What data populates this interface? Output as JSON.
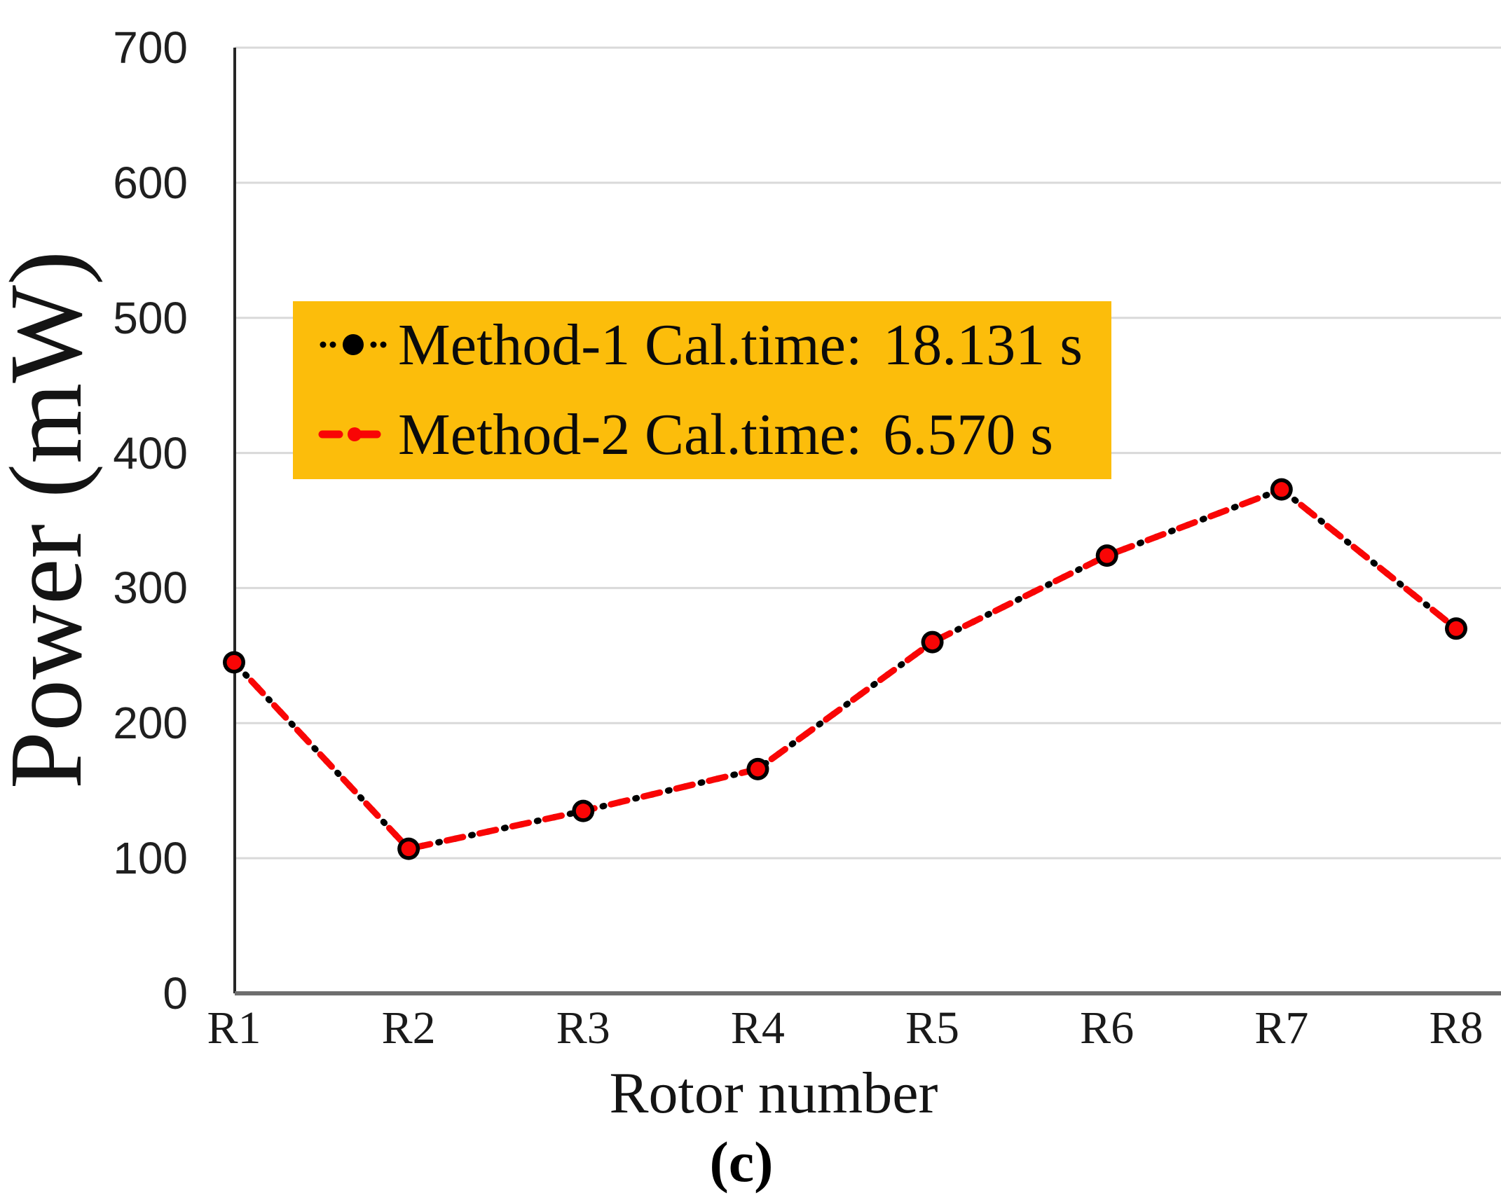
{
  "figure": {
    "caption": "(c)"
  },
  "colors": {
    "method1": "#000000",
    "method2": "#F90505",
    "legend_bg": "#FCBD0B",
    "gridline": "#D9D9D9",
    "y_axis": "#262626",
    "x_axis": "#6E6E6E",
    "marker_fill": "#F90505",
    "marker_ring": "#000000"
  },
  "legend": {
    "items": [
      {
        "label": "Method-1",
        "caltime_label": "Cal.time:",
        "caltime_value": "18.131 s"
      },
      {
        "label": "Method-2",
        "caltime_label": "Cal.time:",
        "caltime_value": "6.570 s"
      }
    ]
  },
  "chart_data": {
    "type": "line",
    "title": "",
    "xlabel": "Rotor number",
    "ylabel": "Power (mW)",
    "categories": [
      "R1",
      "R2",
      "R3",
      "R4",
      "R5",
      "R6",
      "R7",
      "R8"
    ],
    "series": [
      {
        "name": "Method-1",
        "cal_time": "18.131 s",
        "color": "#000000",
        "style": "dotted",
        "values": [
          245,
          107,
          135,
          166,
          260,
          324,
          373,
          270
        ]
      },
      {
        "name": "Method-2",
        "cal_time": "6.570 s",
        "color": "#F90505",
        "style": "dashed",
        "values": [
          245,
          107,
          135,
          166,
          260,
          324,
          373,
          270
        ]
      }
    ],
    "ylim": [
      0,
      700
    ],
    "ytick_step": 100,
    "ytick_labels": [
      "0",
      "100",
      "200",
      "300",
      "400",
      "500",
      "600",
      "700"
    ],
    "grid": true,
    "legend_position": "upper-left"
  }
}
